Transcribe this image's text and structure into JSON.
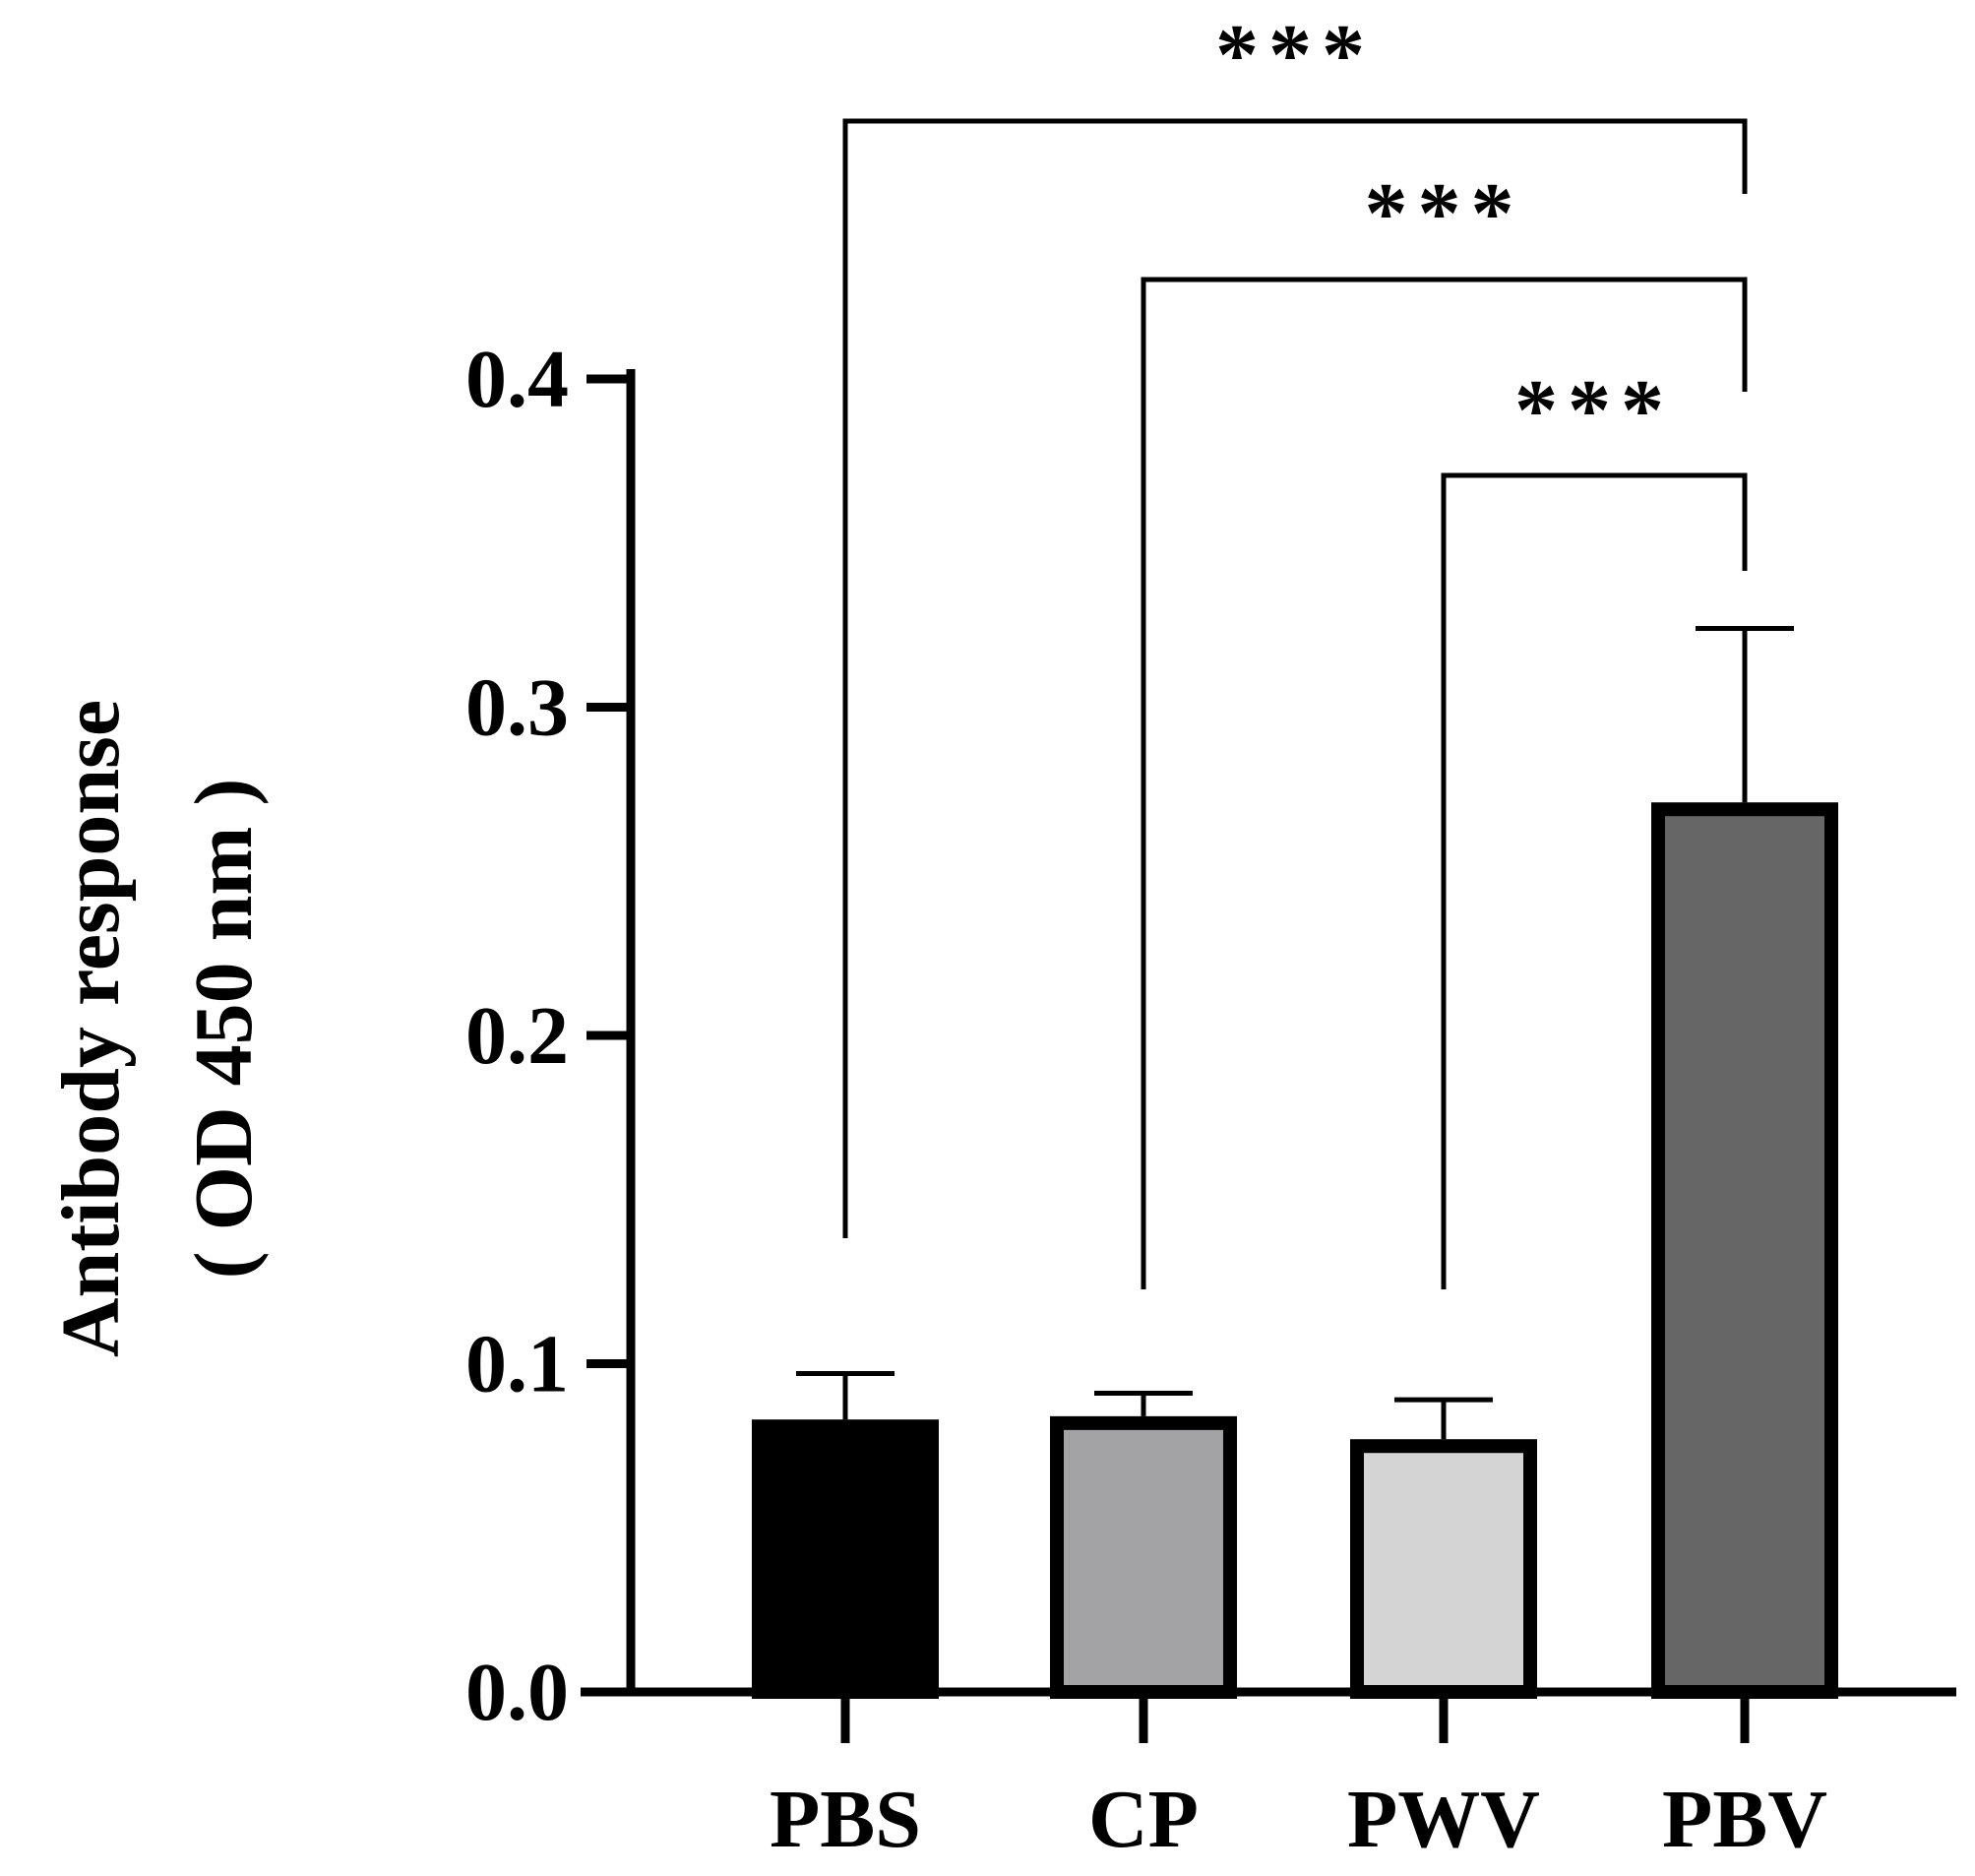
{
  "chart_data": {
    "type": "bar",
    "title": "",
    "xlabel": "",
    "ylabel_lines": [
      "Antibody response",
      "( OD 450 nm )"
    ],
    "ylim": [
      0,
      0.4
    ],
    "yticks": [
      "0.0",
      "0.1",
      "0.2",
      "0.3",
      "0.4"
    ],
    "ytick_values": [
      0,
      0.1,
      0.2,
      0.3,
      0.4
    ],
    "categories": [
      "PBS",
      "CP",
      "PWV",
      "PBV"
    ],
    "values": [
      0.083,
      0.084,
      0.077,
      0.271
    ],
    "errors": [
      0.014,
      0.007,
      0.012,
      0.053
    ],
    "fill_colors": [
      "#000000",
      "#a3a3a6",
      "#d4d4d4",
      "#666666"
    ],
    "significance": [
      {
        "from": "PBS",
        "to": "PBV",
        "label": "***"
      },
      {
        "from": "CP",
        "to": "PBV",
        "label": "***"
      },
      {
        "from": "PWV",
        "to": "PBV",
        "label": "***"
      }
    ]
  }
}
